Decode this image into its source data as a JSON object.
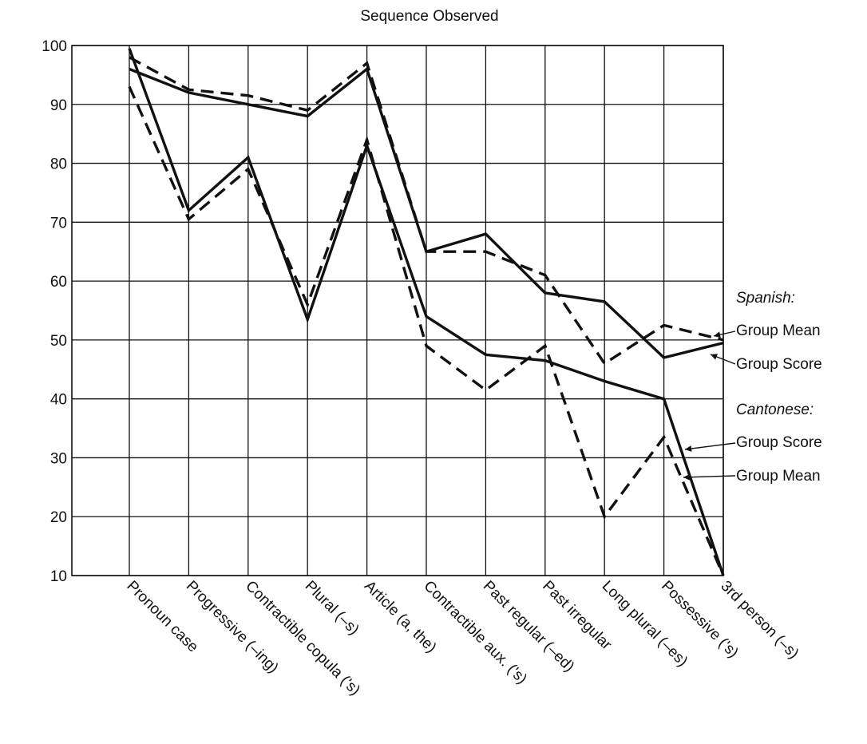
{
  "chart_data": {
    "type": "line",
    "title": "Sequence Observed",
    "xlabel": "",
    "ylabel": "",
    "ylim": [
      10,
      100
    ],
    "yticks": [
      100,
      90,
      80,
      70,
      60,
      50,
      40,
      30,
      20,
      10
    ],
    "grid": true,
    "categories": [
      "Pronoun case",
      "Progressive (–ing)",
      "Contractible copula ('s)",
      "Plural (–s)",
      "Article (a, the)",
      "Contractible aux. ('s)",
      "Past regular (–ed)",
      "Past irregular",
      "Long plural (–es)",
      "Possessive ('s)",
      "3rd person (–s)"
    ],
    "series": [
      {
        "group": "Spanish:",
        "name": "Group Score",
        "style": "solid",
        "values": [
          96,
          92,
          90,
          88,
          96,
          65,
          68,
          58,
          56.5,
          47,
          49.5
        ]
      },
      {
        "group": "Spanish:",
        "name": "Group Mean",
        "style": "dashed",
        "values": [
          98,
          92.5,
          91.5,
          89,
          97,
          65,
          65,
          61,
          46,
          52.5,
          50
        ]
      },
      {
        "group": "Cantonese:",
        "name": "Group Score",
        "style": "solid",
        "values": [
          99.5,
          72,
          81,
          53.5,
          83,
          54,
          47.5,
          46.5,
          43,
          40,
          10
        ]
      },
      {
        "group": "Cantonese:",
        "name": "Group Mean",
        "style": "dashed",
        "values": [
          93,
          70.5,
          79,
          56,
          84,
          49,
          41.5,
          49,
          20,
          33.5,
          10
        ]
      }
    ],
    "legend": {
      "position": "right",
      "groups": [
        {
          "label": "Spanish:",
          "entries": [
            "Group Mean",
            "Group Score"
          ]
        },
        {
          "label": "Cantonese:",
          "entries": [
            "Group Score",
            "Group Mean"
          ]
        }
      ]
    },
    "colors": {
      "line": "#111111",
      "grid": "#111111"
    }
  }
}
